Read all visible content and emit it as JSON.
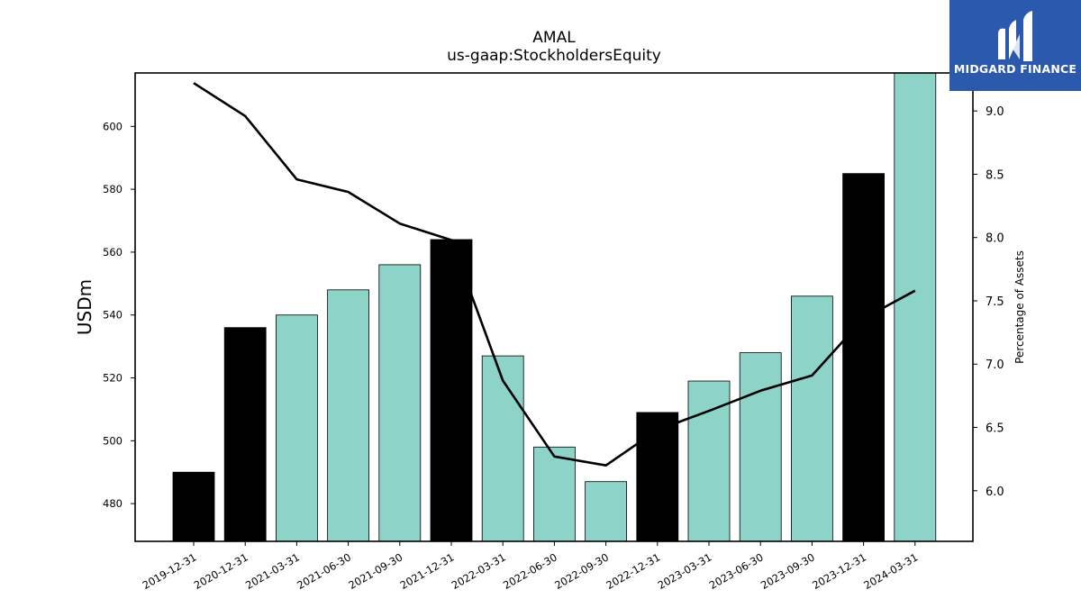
{
  "chart_data": {
    "type": "bar",
    "title": "AMAL",
    "subtitle": "us-gaap:StockholdersEquity",
    "ylabel": "USDm",
    "y2label": "Percentage of Assets",
    "ylim": [
      468,
      617
    ],
    "y2lim": [
      5.6,
      9.3
    ],
    "yticks": [
      480,
      500,
      520,
      540,
      560,
      580,
      600
    ],
    "y2ticks": [
      "6.0",
      "6.5",
      "7.0",
      "7.5",
      "8.0",
      "8.5",
      "9.0"
    ],
    "categories": [
      "2019-12-31",
      "2020-12-31",
      "2021-03-31",
      "2021-06-30",
      "2021-09-30",
      "2021-12-31",
      "2022-03-31",
      "2022-06-30",
      "2022-09-30",
      "2022-12-31",
      "2023-03-31",
      "2023-06-30",
      "2023-09-30",
      "2023-12-31",
      "2024-03-31"
    ],
    "values": [
      490,
      536,
      540,
      548,
      556,
      564,
      527,
      498,
      487,
      509,
      519,
      528,
      546,
      585,
      618
    ],
    "bar_colors": [
      "#000000",
      "#000000",
      "#8dd3c7",
      "#8dd3c7",
      "#8dd3c7",
      "#000000",
      "#8dd3c7",
      "#8dd3c7",
      "#8dd3c7",
      "#000000",
      "#8dd3c7",
      "#8dd3c7",
      "#8dd3c7",
      "#000000",
      "#8dd3c7"
    ],
    "line_values": [
      9.22,
      8.96,
      8.46,
      8.36,
      8.11,
      7.98,
      6.87,
      6.27,
      6.2,
      6.48,
      6.63,
      6.79,
      6.91,
      7.36,
      7.58
    ],
    "line_color": "#000000",
    "grid": false
  },
  "logo": {
    "text": "MIDGARD FINANCE",
    "color": "#2b5aad"
  }
}
